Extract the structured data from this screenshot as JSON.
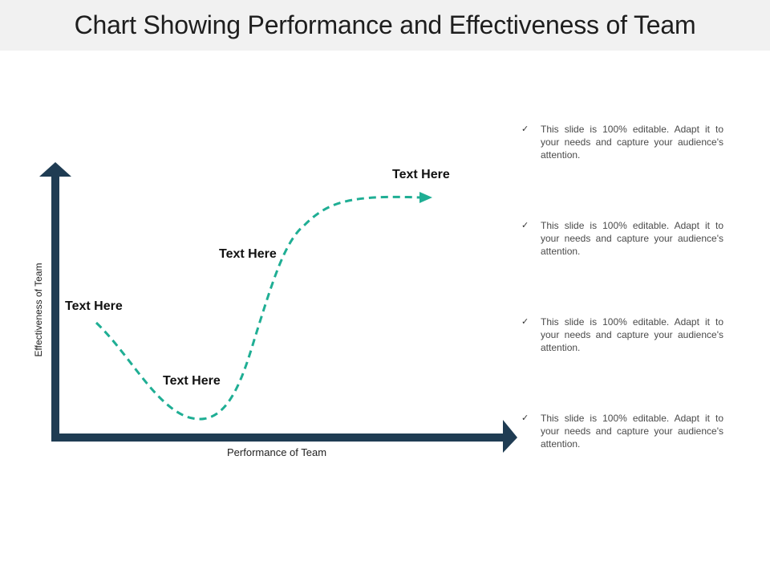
{
  "title": "Chart Showing Performance and Effectiveness of Team",
  "axes": {
    "x_label": "Performance of Team",
    "y_label": "Effectiveness of Team"
  },
  "curve_labels": [
    "Text Here",
    "Text Here",
    "Text Here",
    "Text Here"
  ],
  "bullets": [
    "This slide is 100% editable. Adapt it to your needs and capture your audience's attention.",
    "This slide is 100% editable. Adapt it to your needs and capture your audience's attention.",
    "This slide is 100% editable. Adapt it to your needs and capture your audience's attention.",
    "This slide is 100% editable. Adapt it to your needs and capture your audience's attention."
  ],
  "icons": {
    "bullet": "check-icon"
  },
  "colors": {
    "axis": "#1f3c53",
    "curve": "#1fae94",
    "title_bg": "#f1f1f1"
  }
}
